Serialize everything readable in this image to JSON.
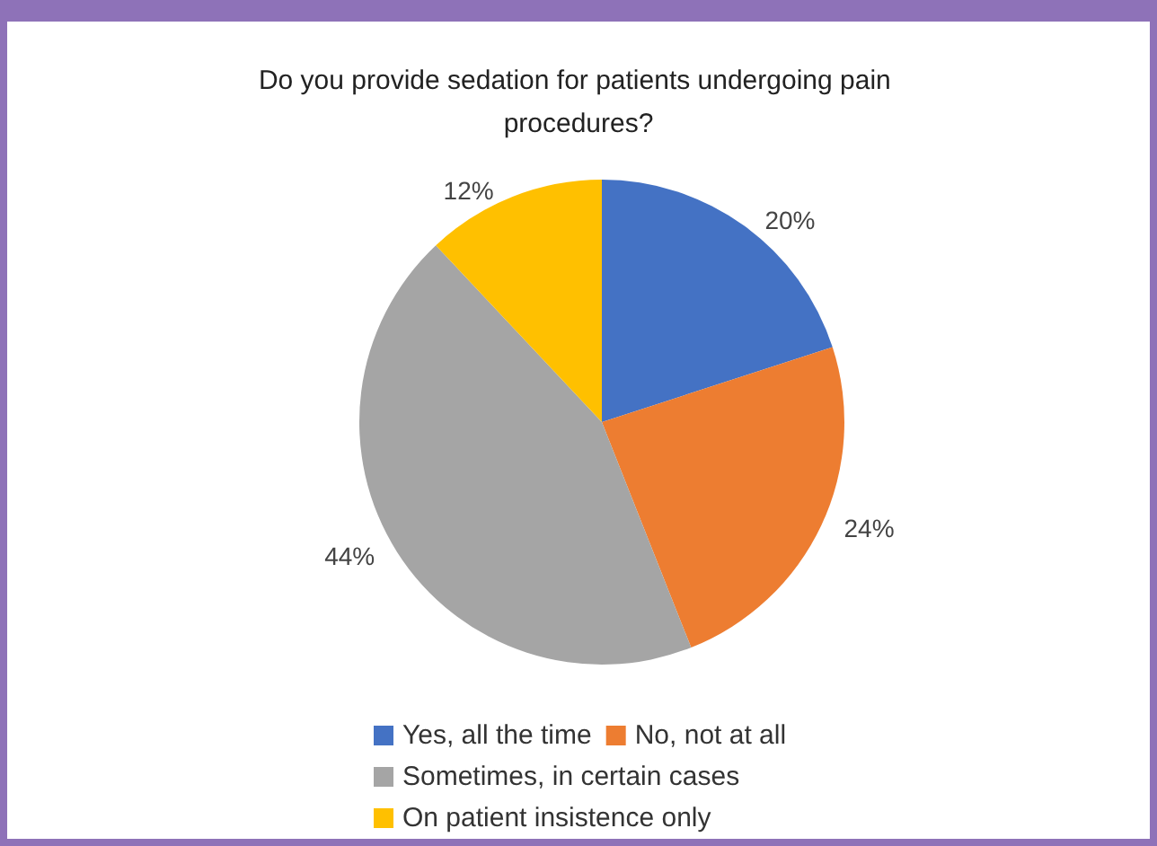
{
  "chart_data": {
    "type": "pie",
    "title": "Do you provide sedation for patients undergoing pain procedures?",
    "categories": [
      "Yes, all the time",
      "No, not at all",
      "Sometimes, in certain cases",
      "On patient insistence only"
    ],
    "values": [
      20,
      24,
      44,
      12
    ],
    "colors": [
      "#4472c4",
      "#ed7d31",
      "#a5a5a5",
      "#ffc000"
    ],
    "value_labels": [
      "20%",
      "24%",
      "44%",
      "12%"
    ],
    "legend": "bottom"
  }
}
